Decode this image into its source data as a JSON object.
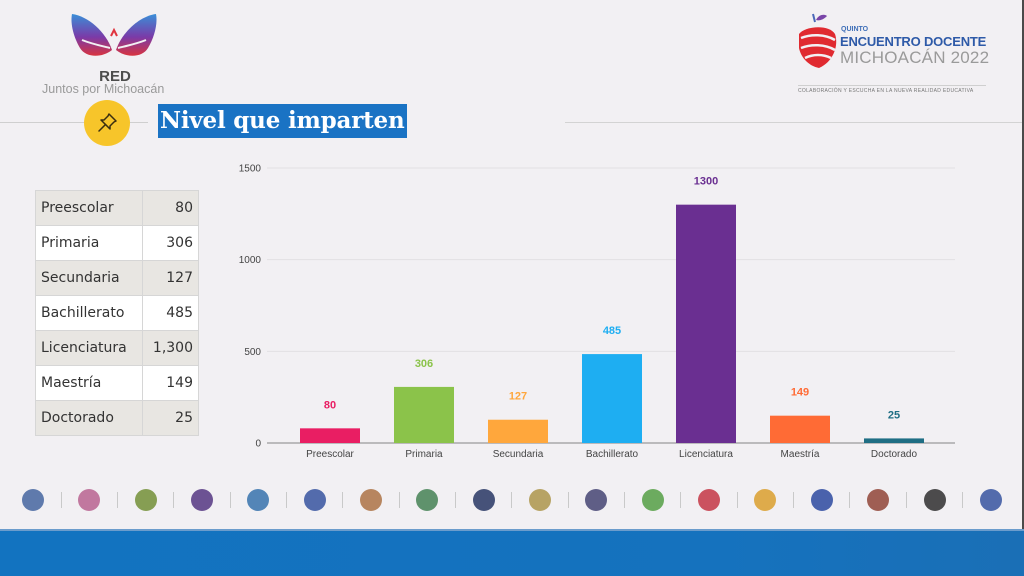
{
  "header": {
    "left_logo": {
      "title": "RED",
      "subtitle": "Juntos por Michoacán"
    },
    "right_logo": {
      "kicker": "QUINTO",
      "title": "ENCUENTRO DOCENTE",
      "subtitle": "MICHOACÁN 2022",
      "tagline": "COLABORACIÓN Y ESCUCHA EN LA NUEVA REALIDAD EDUCATIVA"
    }
  },
  "section": {
    "icon": "pushpin-icon",
    "title": "Nivel que imparten"
  },
  "table": {
    "rows": [
      {
        "label": "Preescolar",
        "value": "80"
      },
      {
        "label": "Primaria",
        "value": "306"
      },
      {
        "label": "Secundaria",
        "value": "127"
      },
      {
        "label": "Bachillerato",
        "value": "485"
      },
      {
        "label": "Licenciatura",
        "value": "1,300"
      },
      {
        "label": "Maestría",
        "value": "149"
      },
      {
        "label": "Doctorado",
        "value": "25"
      }
    ]
  },
  "chart_data": {
    "type": "bar",
    "title": "",
    "xlabel": "",
    "ylabel": "",
    "categories": [
      "Preescolar",
      "Primaria",
      "Secundaria",
      "Bachillerato",
      "Licenciatura",
      "Maestría",
      "Doctorado"
    ],
    "values": [
      80,
      306,
      127,
      485,
      1300,
      149,
      25
    ],
    "colors": [
      "#e91e63",
      "#8bc34a",
      "#ffa73c",
      "#1eaef2",
      "#6a2f91",
      "#ff6b35",
      "#1f6e84"
    ],
    "data_labels": [
      "80",
      "306",
      "127",
      "485",
      "1300",
      "149",
      "25"
    ],
    "ylim": [
      0,
      1500
    ],
    "yticks": [
      0,
      500,
      1000,
      1500
    ],
    "grid": true,
    "legend": "none"
  },
  "footer_logos": [
    "Colegio Libertad",
    "CIM",
    "Escuela Normal",
    "UNLA",
    "FUCIDIM",
    "Tecnológico de Monterrey",
    "Escudo",
    "Escuela",
    "UNID",
    "Ostelia",
    "UNIVA",
    "UDEM Universidad de Morelia",
    "La Salle Morelia",
    "DECAM",
    "UVAQ",
    "Escudo universitario",
    "IIO Universidad Internacional Jefferson",
    "Escuela circular"
  ]
}
